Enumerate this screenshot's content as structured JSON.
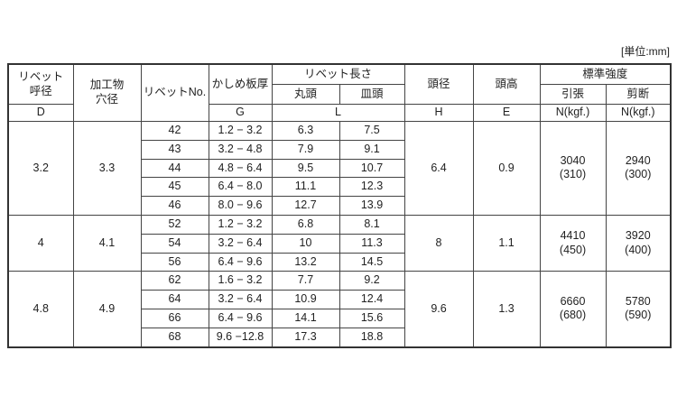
{
  "unit_label": "[単位:mm]",
  "headers": {
    "rivet_diameter": "リベット\n呼径",
    "hole_diameter": "加工物\n穴径",
    "rivet_no": "リベットNo.",
    "grip": "かしめ板厚",
    "rivet_length": "リベット長さ",
    "round_head": "丸頭",
    "countersunk_head": "皿頭",
    "head_diameter": "頭径",
    "head_height": "頭高",
    "strength": "標準強度",
    "tensile": "引張",
    "shear": "剪断",
    "sym_d": "D",
    "sym_g": "G",
    "sym_l": "L",
    "sym_h": "H",
    "sym_e": "E",
    "unit_tensile": "N(kgf.)",
    "unit_shear": "N(kgf.)"
  },
  "groups": [
    {
      "d": "3.2",
      "hole": "3.3",
      "h": "6.4",
      "e": "0.9",
      "tensile": "3040\n(310)",
      "shear": "2940\n(300)",
      "rows": [
        [
          "42",
          "1.2 − 3.2",
          "6.3",
          "7.5"
        ],
        [
          "43",
          "3.2 − 4.8",
          "7.9",
          "9.1"
        ],
        [
          "44",
          "4.8 − 6.4",
          "9.5",
          "10.7"
        ],
        [
          "45",
          "6.4 − 8.0",
          "11.1",
          "12.3"
        ],
        [
          "46",
          "8.0 − 9.6",
          "12.7",
          "13.9"
        ]
      ]
    },
    {
      "d": "4",
      "hole": "4.1",
      "h": "8",
      "e": "1.1",
      "tensile": "4410\n(450)",
      "shear": "3920\n(400)",
      "rows": [
        [
          "52",
          "1.2 − 3.2",
          "6.8",
          "8.1"
        ],
        [
          "54",
          "3.2 − 6.4",
          "10",
          "11.3"
        ],
        [
          "56",
          "6.4 − 9.6",
          "13.2",
          "14.5"
        ]
      ]
    },
    {
      "d": "4.8",
      "hole": "4.9",
      "h": "9.6",
      "e": "1.3",
      "tensile": "6660\n(680)",
      "shear": "5780\n(590)",
      "rows": [
        [
          "62",
          "1.6 − 3.2",
          "7.7",
          "9.2"
        ],
        [
          "64",
          "3.2 − 6.4",
          "10.9",
          "12.4"
        ],
        [
          "66",
          "6.4 − 9.6",
          "14.1",
          "15.6"
        ],
        [
          "68",
          "9.6 −12.8",
          "17.3",
          "18.8"
        ]
      ]
    }
  ]
}
